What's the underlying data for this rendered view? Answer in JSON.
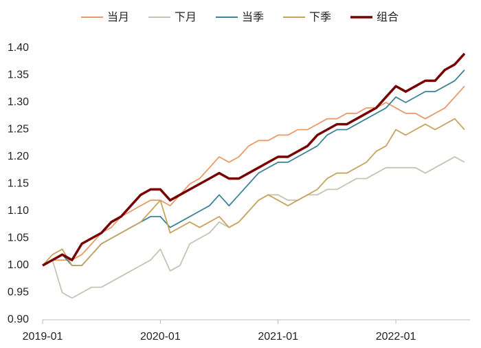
{
  "chart_data": {
    "type": "line",
    "x": [
      "2019-01",
      "2019-02",
      "2019-03",
      "2019-04",
      "2019-05",
      "2019-06",
      "2019-07",
      "2019-08",
      "2019-09",
      "2019-10",
      "2019-11",
      "2019-12",
      "2020-01",
      "2020-02",
      "2020-03",
      "2020-04",
      "2020-05",
      "2020-06",
      "2020-07",
      "2020-08",
      "2020-09",
      "2020-10",
      "2020-11",
      "2020-12",
      "2021-01",
      "2021-02",
      "2021-03",
      "2021-04",
      "2021-05",
      "2021-06",
      "2021-07",
      "2021-08",
      "2021-09",
      "2021-10",
      "2021-11",
      "2021-12",
      "2022-01",
      "2022-02",
      "2022-03",
      "2022-04",
      "2022-05",
      "2022-06",
      "2022-07",
      "2022-08"
    ],
    "series": [
      {
        "name": "当月",
        "color": "#e89a68",
        "values": [
          1.0,
          1.01,
          1.01,
          1.01,
          1.02,
          1.04,
          1.06,
          1.07,
          1.09,
          1.1,
          1.11,
          1.12,
          1.12,
          1.11,
          1.13,
          1.15,
          1.16,
          1.18,
          1.2,
          1.19,
          1.2,
          1.22,
          1.23,
          1.23,
          1.24,
          1.24,
          1.25,
          1.25,
          1.26,
          1.27,
          1.27,
          1.28,
          1.28,
          1.29,
          1.29,
          1.3,
          1.29,
          1.28,
          1.28,
          1.27,
          1.28,
          1.29,
          1.31,
          1.33
        ]
      },
      {
        "name": "下月",
        "color": "#c4c4b4",
        "values": [
          1.0,
          1.01,
          0.95,
          0.94,
          0.95,
          0.96,
          0.96,
          0.97,
          0.98,
          0.99,
          1.0,
          1.01,
          1.03,
          0.99,
          1.0,
          1.04,
          1.05,
          1.06,
          1.08,
          1.07,
          1.08,
          1.1,
          1.12,
          1.13,
          1.13,
          1.12,
          1.12,
          1.13,
          1.13,
          1.14,
          1.14,
          1.15,
          1.16,
          1.16,
          1.17,
          1.18,
          1.18,
          1.18,
          1.18,
          1.17,
          1.18,
          1.19,
          1.2,
          1.19
        ]
      },
      {
        "name": "当季",
        "color": "#3a8496",
        "values": [
          1.0,
          1.01,
          1.02,
          1.0,
          1.0,
          1.02,
          1.04,
          1.05,
          1.06,
          1.07,
          1.08,
          1.09,
          1.09,
          1.07,
          1.08,
          1.09,
          1.1,
          1.11,
          1.13,
          1.11,
          1.13,
          1.15,
          1.17,
          1.18,
          1.19,
          1.19,
          1.2,
          1.21,
          1.22,
          1.24,
          1.25,
          1.25,
          1.26,
          1.27,
          1.28,
          1.29,
          1.31,
          1.3,
          1.31,
          1.32,
          1.32,
          1.33,
          1.34,
          1.36
        ]
      },
      {
        "name": "下季",
        "color": "#c6a45e",
        "values": [
          1.0,
          1.02,
          1.03,
          1.0,
          1.0,
          1.02,
          1.04,
          1.05,
          1.06,
          1.07,
          1.08,
          1.1,
          1.12,
          1.06,
          1.07,
          1.08,
          1.07,
          1.08,
          1.09,
          1.07,
          1.08,
          1.1,
          1.12,
          1.13,
          1.12,
          1.11,
          1.12,
          1.13,
          1.14,
          1.16,
          1.17,
          1.17,
          1.18,
          1.19,
          1.21,
          1.22,
          1.25,
          1.24,
          1.25,
          1.26,
          1.25,
          1.26,
          1.27,
          1.25
        ]
      },
      {
        "name": "组合",
        "color": "#780000",
        "values": [
          1.0,
          1.01,
          1.02,
          1.01,
          1.04,
          1.05,
          1.06,
          1.08,
          1.09,
          1.11,
          1.13,
          1.14,
          1.14,
          1.12,
          1.13,
          1.14,
          1.15,
          1.16,
          1.17,
          1.16,
          1.16,
          1.17,
          1.18,
          1.19,
          1.2,
          1.2,
          1.21,
          1.22,
          1.24,
          1.25,
          1.26,
          1.26,
          1.27,
          1.28,
          1.29,
          1.31,
          1.33,
          1.32,
          1.33,
          1.34,
          1.34,
          1.36,
          1.37,
          1.39
        ]
      }
    ],
    "xticks": [
      "2019-01",
      "2020-01",
      "2021-01",
      "2022-01"
    ],
    "ylim": [
      0.9,
      1.4
    ],
    "yticks": [
      {
        "value": 0.9,
        "label": "0.90"
      },
      0.95,
      {
        "value": 1,
        "label": "1.00"
      },
      1.05,
      {
        "value": 1.1,
        "label": "1.10"
      },
      1.15,
      {
        "value": 1.2,
        "label": "1.20"
      },
      1.25,
      {
        "value": 1.3,
        "label": "1.30"
      },
      1.35,
      {
        "value": 1.4,
        "label": "1.40"
      }
    ],
    "legend": "top",
    "grid": false
  }
}
